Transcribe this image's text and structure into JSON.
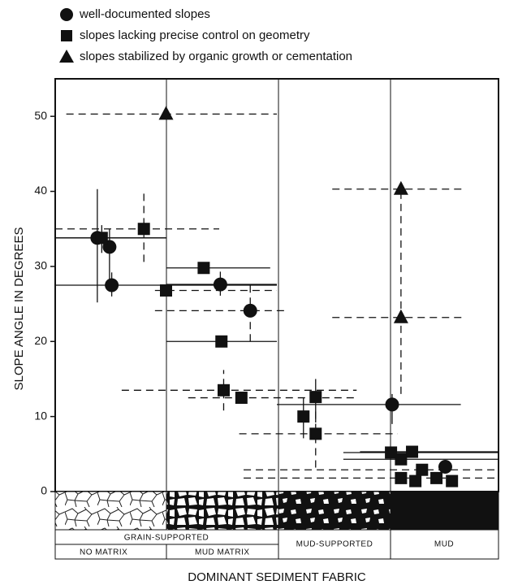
{
  "chart_data": {
    "type": "scatter",
    "y_label": "SLOPE ANGLE IN DEGREES",
    "x_label": "DOMINANT SEDIMENT FABRIC",
    "fabric_groups": [
      "GRAIN-SUPPORTED",
      "MUD-SUPPORTED",
      "MUD"
    ],
    "fabric_subgroups": [
      "NO MATRIX",
      "MUD MATRIX"
    ],
    "xlim": [
      0,
      4
    ],
    "ylim": [
      0,
      55
    ],
    "yticks": [
      0,
      10,
      20,
      30,
      40,
      50
    ],
    "series": [
      {
        "name": "well-documented slopes",
        "marker": "circle",
        "color": "#111",
        "points": [
          {
            "x": 0.38,
            "y": 33.8,
            "yr": [
              25.2,
              40.3
            ],
            "xr": [
              0,
              1
            ]
          },
          {
            "x": 0.49,
            "y": 32.6,
            "yr": [
              28,
              35
            ]
          },
          {
            "x": 0.51,
            "y": 27.5,
            "yr": [
              26,
              29.2
            ],
            "xr": [
              0,
              2
            ]
          },
          {
            "x": 1.49,
            "y": 27.6,
            "yr": [
              26.1,
              29.3
            ],
            "xr": [
              1,
              2
            ]
          },
          {
            "x": 1.76,
            "y": 24.1,
            "yr": [
              20,
              28.1
            ],
            "xr": [
              0.9,
              2.1
            ],
            "dash": true
          },
          {
            "x": 3.04,
            "y": 11.6,
            "yr": [
              9,
              13
            ],
            "xr": [
              2,
              3.66
            ]
          },
          {
            "x": 3.52,
            "y": 3.3
          }
        ]
      },
      {
        "name": "slopes lacking precise control on geometry",
        "marker": "square",
        "color": "#111",
        "points": [
          {
            "x": 0.42,
            "y": 33.8,
            "yr": [
              31.8,
              35.5
            ],
            "xr": [
              0,
              1
            ]
          },
          {
            "x": 0.8,
            "y": 35.0,
            "yr": [
              30.6,
              40
            ],
            "xr": [
              0,
              1.48
            ],
            "dash": true
          },
          {
            "x": 1.0,
            "y": 26.8,
            "xr": [
              0.9,
              2
            ],
            "dash": true
          },
          {
            "x": 1.34,
            "y": 29.8,
            "xr": [
              1,
              1.94
            ]
          },
          {
            "x": 1.5,
            "y": 20.0,
            "xr": [
              1,
              2
            ]
          },
          {
            "x": 1.52,
            "y": 13.5,
            "yr": [
              10.8,
              16.2
            ],
            "xr": [
              0.6,
              2.72
            ],
            "dash": true
          },
          {
            "x": 1.68,
            "y": 12.5,
            "xr": [
              1.2,
              2.72
            ],
            "dash": true
          },
          {
            "x": 2.24,
            "y": 10.0,
            "yr": [
              7.1,
              12.5
            ]
          },
          {
            "x": 2.35,
            "y": 12.6,
            "yr": [
              9.2,
              15
            ]
          },
          {
            "x": 2.35,
            "y": 7.7,
            "yr": [
              3.2,
              11.3
            ],
            "xr": [
              1.66,
              3.09
            ],
            "dash": true
          },
          {
            "x": 3.03,
            "y": 5.2,
            "xr": [
              2.6,
              4
            ]
          },
          {
            "x": 3.12,
            "y": 1.8,
            "xr": [
              1.7,
              4
            ],
            "dash": true
          },
          {
            "x": 3.12,
            "y": 4.3,
            "xr": [
              2.6,
              4
            ]
          },
          {
            "x": 3.22,
            "y": 5.3,
            "xr": [
              2.75,
              4
            ]
          },
          {
            "x": 3.31,
            "y": 2.9,
            "xr": [
              1.7,
              4
            ],
            "dash": true
          },
          {
            "x": 3.25,
            "y": 1.4
          },
          {
            "x": 3.44,
            "y": 1.8
          },
          {
            "x": 3.58,
            "y": 1.4
          }
        ]
      },
      {
        "name": "slopes stabilized by organic growth or cementation",
        "marker": "triangle",
        "color": "#111",
        "points": [
          {
            "x": 1.0,
            "y": 50.3,
            "xr": [
              0.1,
              2
            ],
            "dash": true
          },
          {
            "x": 3.12,
            "y": 40.3,
            "xr": [
              2.5,
              3.7
            ],
            "dash": true
          },
          {
            "x": 3.12,
            "y": 23.2,
            "yr": [
              13,
              40
            ],
            "xr": [
              2.5,
              3.7
            ],
            "dash": true
          }
        ]
      }
    ]
  }
}
